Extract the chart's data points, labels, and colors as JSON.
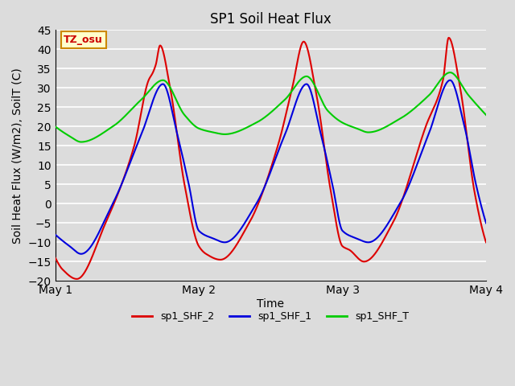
{
  "title": "SP1 Soil Heat Flux",
  "xlabel": "Time",
  "ylabel": "Soil Heat Flux (W/m2), SoilT (C)",
  "ylim": [
    -20,
    45
  ],
  "yticks": [
    -20,
    -15,
    -10,
    -5,
    0,
    5,
    10,
    15,
    20,
    25,
    30,
    35,
    40,
    45
  ],
  "bg_color": "#dcdcdc",
  "line_colors": {
    "sp1_SHF_2": "#dd0000",
    "sp1_SHF_1": "#0000dd",
    "sp1_SHF_T": "#00cc00"
  },
  "line_width": 1.5,
  "tz_label": "TZ_osu",
  "tz_bg": "#ffffcc",
  "tz_border": "#cc8800",
  "xticklabels": [
    "May 1",
    "May 2",
    "May 3",
    "May 4"
  ],
  "xtick_positions": [
    0,
    1,
    2,
    3
  ],
  "legend_labels": [
    "sp1_SHF_2",
    "sp1_SHF_1",
    "sp1_SHF_T"
  ]
}
